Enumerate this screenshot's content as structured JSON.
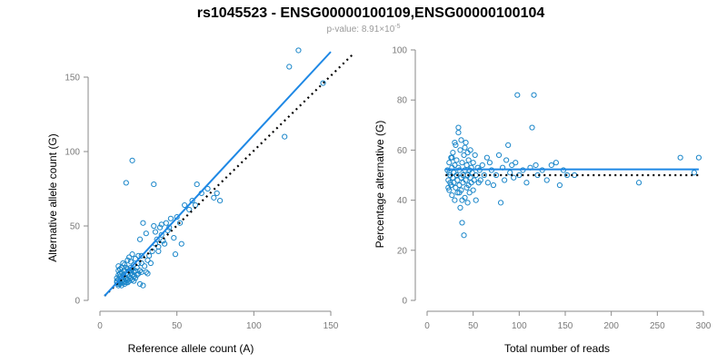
{
  "title": "rs1045523 - ENSG00000100109,ENSG00000100104",
  "subtitle": {
    "prefix": "p-value: 8.91×10",
    "exponent": "-5"
  },
  "colors": {
    "points": "#1a86c9",
    "fit": "#1e88e5",
    "reference": "#000000"
  },
  "chart_data": [
    {
      "type": "scatter",
      "xlabel": "Reference allele count (A)",
      "ylabel": "Alternative allele count (G)",
      "xlim": [
        0,
        150
      ],
      "ylim": [
        0,
        150
      ],
      "xticks": [
        0,
        50,
        100,
        150
      ],
      "yticks": [
        0,
        50,
        100,
        150
      ],
      "fit_line": {
        "x": [
          3,
          150
        ],
        "y": [
          3,
          167
        ]
      },
      "reference_line": {
        "x": [
          3,
          165
        ],
        "y": [
          3,
          166
        ]
      },
      "points": [
        [
          11,
          12
        ],
        [
          11,
          13
        ],
        [
          11,
          15
        ],
        [
          12,
          11
        ],
        [
          12,
          14
        ],
        [
          12,
          17
        ],
        [
          12,
          20
        ],
        [
          12,
          23
        ],
        [
          13,
          12
        ],
        [
          13,
          16
        ],
        [
          13,
          18
        ],
        [
          13,
          21
        ],
        [
          14,
          13
        ],
        [
          14,
          15
        ],
        [
          14,
          19
        ],
        [
          14,
          22
        ],
        [
          15,
          12
        ],
        [
          15,
          14
        ],
        [
          15,
          17
        ],
        [
          15,
          25
        ],
        [
          16,
          13
        ],
        [
          16,
          16
        ],
        [
          16,
          20
        ],
        [
          16,
          24
        ],
        [
          17,
          12
        ],
        [
          17,
          15
        ],
        [
          17,
          18
        ],
        [
          17,
          22
        ],
        [
          18,
          14
        ],
        [
          18,
          17
        ],
        [
          18,
          21
        ],
        [
          18,
          27
        ],
        [
          19,
          13
        ],
        [
          19,
          16
        ],
        [
          19,
          20
        ],
        [
          19,
          29
        ],
        [
          20,
          15
        ],
        [
          20,
          18
        ],
        [
          20,
          22
        ],
        [
          20,
          26
        ],
        [
          21,
          14
        ],
        [
          21,
          17
        ],
        [
          21,
          21
        ],
        [
          21,
          31
        ],
        [
          22,
          16
        ],
        [
          22,
          19
        ],
        [
          22,
          24
        ],
        [
          23,
          15
        ],
        [
          23,
          20
        ],
        [
          23,
          28
        ],
        [
          24,
          17
        ],
        [
          24,
          22
        ],
        [
          25,
          18
        ],
        [
          25,
          25
        ],
        [
          25,
          30
        ],
        [
          26,
          20
        ],
        [
          26,
          41
        ],
        [
          27,
          19
        ],
        [
          27,
          30
        ],
        [
          28,
          52
        ],
        [
          28,
          10
        ],
        [
          29,
          23
        ],
        [
          30,
          19
        ],
        [
          30,
          45
        ],
        [
          31,
          18
        ],
        [
          31,
          27
        ],
        [
          32,
          30
        ],
        [
          33,
          25
        ],
        [
          34,
          33
        ],
        [
          35,
          50
        ],
        [
          36,
          46
        ],
        [
          36,
          38
        ],
        [
          37,
          41
        ],
        [
          38,
          36
        ],
        [
          38,
          33
        ],
        [
          39,
          49
        ],
        [
          40,
          44
        ],
        [
          40,
          51
        ],
        [
          41,
          40
        ],
        [
          42,
          38
        ],
        [
          43,
          52
        ],
        [
          44,
          47
        ],
        [
          45,
          49
        ],
        [
          46,
          55
        ],
        [
          48,
          42
        ],
        [
          49,
          31
        ],
        [
          50,
          56
        ],
        [
          52,
          52
        ],
        [
          53,
          38
        ],
        [
          55,
          64
        ],
        [
          58,
          61
        ],
        [
          60,
          67
        ],
        [
          62,
          64
        ],
        [
          63,
          78
        ],
        [
          66,
          72
        ],
        [
          70,
          75
        ],
        [
          74,
          69
        ],
        [
          76,
          72
        ],
        [
          78,
          67
        ],
        [
          17,
          79
        ],
        [
          21,
          94
        ],
        [
          35,
          78
        ],
        [
          120,
          110
        ],
        [
          123,
          157
        ],
        [
          129,
          168
        ],
        [
          145,
          146
        ],
        [
          12,
          10
        ],
        [
          13,
          11
        ],
        [
          14,
          10
        ],
        [
          16,
          11
        ],
        [
          18,
          12
        ],
        [
          22,
          13
        ],
        [
          26,
          11
        ],
        [
          27,
          25
        ]
      ]
    },
    {
      "type": "scatter",
      "xlabel": "Total number of reads",
      "ylabel": "Percentage alternative (G)",
      "xlim": [
        0,
        300
      ],
      "ylim": [
        0,
        100
      ],
      "xticks": [
        0,
        50,
        100,
        150,
        200,
        250,
        300
      ],
      "yticks": [
        0,
        20,
        40,
        60,
        80,
        100
      ],
      "fit_line": {
        "x": [
          20,
          295
        ],
        "y": [
          52.3,
          52.3
        ]
      },
      "reference_line": {
        "x": [
          20,
          295
        ],
        "y": [
          50,
          50
        ]
      },
      "points": [
        [
          22,
          52
        ],
        [
          23,
          48
        ],
        [
          24,
          55
        ],
        [
          24,
          44
        ],
        [
          25,
          50
        ],
        [
          26,
          46
        ],
        [
          26,
          57
        ],
        [
          27,
          53
        ],
        [
          27,
          42
        ],
        [
          28,
          49
        ],
        [
          28,
          59
        ],
        [
          29,
          47
        ],
        [
          29,
          51
        ],
        [
          30,
          54
        ],
        [
          30,
          40
        ],
        [
          31,
          45
        ],
        [
          31,
          62
        ],
        [
          32,
          50
        ],
        [
          32,
          56
        ],
        [
          33,
          48
        ],
        [
          33,
          43
        ],
        [
          34,
          53
        ],
        [
          34,
          67
        ],
        [
          35,
          46
        ],
        [
          35,
          52
        ],
        [
          36,
          60
        ],
        [
          36,
          37
        ],
        [
          37,
          49
        ],
        [
          37,
          44
        ],
        [
          38,
          55
        ],
        [
          38,
          31
        ],
        [
          39,
          50
        ],
        [
          39,
          47
        ],
        [
          40,
          26
        ],
        [
          40,
          58
        ],
        [
          41,
          52
        ],
        [
          41,
          41
        ],
        [
          42,
          48
        ],
        [
          42,
          63
        ],
        [
          43,
          54
        ],
        [
          43,
          45
        ],
        [
          44,
          50
        ],
        [
          44,
          39
        ],
        [
          45,
          56
        ],
        [
          45,
          46
        ],
        [
          46,
          52
        ],
        [
          46,
          43
        ],
        [
          47,
          49
        ],
        [
          47,
          60
        ],
        [
          48,
          53
        ],
        [
          48,
          47
        ],
        [
          49,
          51
        ],
        [
          50,
          55
        ],
        [
          50,
          44
        ],
        [
          51,
          48
        ],
        [
          52,
          58
        ],
        [
          53,
          50
        ],
        [
          53,
          40
        ],
        [
          55,
          53
        ],
        [
          56,
          47
        ],
        [
          57,
          52
        ],
        [
          58,
          48
        ],
        [
          60,
          54
        ],
        [
          62,
          50
        ],
        [
          65,
          57
        ],
        [
          66,
          47
        ],
        [
          68,
          55
        ],
        [
          70,
          52
        ],
        [
          72,
          46
        ],
        [
          75,
          50
        ],
        [
          78,
          58
        ],
        [
          80,
          39
        ],
        [
          82,
          53
        ],
        [
          84,
          48
        ],
        [
          86,
          56
        ],
        [
          88,
          62
        ],
        [
          90,
          51
        ],
        [
          92,
          54
        ],
        [
          94,
          49
        ],
        [
          96,
          55
        ],
        [
          98,
          82
        ],
        [
          100,
          50
        ],
        [
          104,
          52
        ],
        [
          108,
          47
        ],
        [
          112,
          53
        ],
        [
          114,
          69
        ],
        [
          116,
          82
        ],
        [
          118,
          54
        ],
        [
          120,
          50
        ],
        [
          125,
          52
        ],
        [
          130,
          48
        ],
        [
          135,
          54
        ],
        [
          140,
          55
        ],
        [
          144,
          46
        ],
        [
          148,
          52
        ],
        [
          152,
          50
        ],
        [
          160,
          50
        ],
        [
          230,
          47
        ],
        [
          275,
          57
        ],
        [
          290,
          51
        ],
        [
          295,
          57
        ],
        [
          34,
          69
        ],
        [
          37,
          64
        ],
        [
          41,
          61
        ],
        [
          44,
          59
        ],
        [
          30,
          63
        ],
        [
          27,
          57
        ],
        [
          25,
          47
        ],
        [
          24,
          51
        ],
        [
          23,
          45
        ],
        [
          35,
          43
        ],
        [
          38,
          40
        ]
      ]
    }
  ]
}
